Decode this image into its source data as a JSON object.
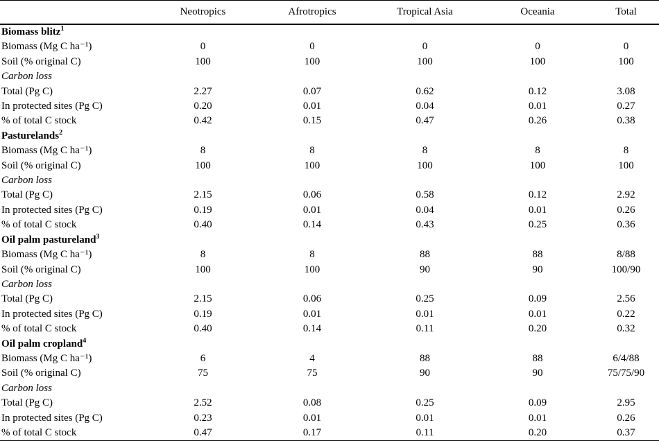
{
  "table": {
    "columns": [
      "Neotropics",
      "Afrotropics",
      "Tropical Asia",
      "Oceania",
      "Total"
    ],
    "sections": [
      {
        "title": "Biomass blitz",
        "footnote_mark": "1",
        "rows": [
          {
            "type": "data",
            "label": "Biomass (Mg C ha⁻¹)",
            "values": [
              "0",
              "0",
              "0",
              "0",
              "0"
            ]
          },
          {
            "type": "data",
            "label": "Soil (% original C)",
            "values": [
              "100",
              "100",
              "100",
              "100",
              "100"
            ]
          },
          {
            "type": "subheader",
            "label": "Carbon loss",
            "values": [
              "",
              "",
              "",
              "",
              ""
            ]
          },
          {
            "type": "data",
            "label": "Total (Pg C)",
            "values": [
              "2.27",
              "0.07",
              "0.62",
              "0.12",
              "3.08"
            ]
          },
          {
            "type": "data",
            "label": "In protected sites (Pg C)",
            "values": [
              "0.20",
              "0.01",
              "0.04",
              "0.01",
              "0.27"
            ]
          },
          {
            "type": "data",
            "label": "% of total C stock",
            "values": [
              "0.42",
              "0.15",
              "0.47",
              "0.26",
              "0.38"
            ]
          }
        ]
      },
      {
        "title": "Pasturelands",
        "footnote_mark": "2",
        "rows": [
          {
            "type": "data",
            "label": "Biomass (Mg C ha⁻¹)",
            "values": [
              "8",
              "8",
              "8",
              "8",
              "8"
            ]
          },
          {
            "type": "data",
            "label": "Soil (% original C)",
            "values": [
              "100",
              "100",
              "100",
              "100",
              "100"
            ]
          },
          {
            "type": "subheader",
            "label": "Carbon loss",
            "values": [
              "",
              "",
              "",
              "",
              ""
            ]
          },
          {
            "type": "data",
            "label": "Total (Pg C)",
            "values": [
              "2.15",
              "0.06",
              "0.58",
              "0.12",
              "2.92"
            ]
          },
          {
            "type": "data",
            "label": "In protected sites (Pg C)",
            "values": [
              "0.19",
              "0.01",
              "0.04",
              "0.01",
              "0.26"
            ]
          },
          {
            "type": "data",
            "label": "% of total C stock",
            "values": [
              "0.40",
              "0.14",
              "0.43",
              "0.25",
              "0.36"
            ]
          }
        ]
      },
      {
        "title": "Oil palm pastureland",
        "footnote_mark": "3",
        "rows": [
          {
            "type": "data",
            "label": "Biomass (Mg C ha⁻¹)",
            "values": [
              "8",
              "8",
              "88",
              "88",
              "8/88"
            ]
          },
          {
            "type": "data",
            "label": "Soil (% original C)",
            "values": [
              "100",
              "100",
              "90",
              "90",
              "100/90"
            ]
          },
          {
            "type": "subheader",
            "label": "Carbon loss",
            "values": [
              "",
              "",
              "",
              "",
              ""
            ]
          },
          {
            "type": "data",
            "label": "Total (Pg C)",
            "values": [
              "2.15",
              "0.06",
              "0.25",
              "0.09",
              "2.56"
            ]
          },
          {
            "type": "data",
            "label": "In protected sites (Pg C)",
            "values": [
              "0.19",
              "0.01",
              "0.01",
              "0.01",
              "0.22"
            ]
          },
          {
            "type": "data",
            "label": "% of total C stock",
            "values": [
              "0.40",
              "0.14",
              "0.11",
              "0.20",
              "0.32"
            ]
          }
        ]
      },
      {
        "title": "Oil palm cropland",
        "footnote_mark": "4",
        "rows": [
          {
            "type": "data",
            "label": "Biomass (Mg C ha⁻¹)",
            "values": [
              "6",
              "4",
              "88",
              "88",
              "6/4/88"
            ]
          },
          {
            "type": "data",
            "label": "Soil (% original C)",
            "values": [
              "75",
              "75",
              "90",
              "90",
              "75/75/90"
            ]
          },
          {
            "type": "subheader",
            "label": "Carbon loss",
            "values": [
              "",
              "",
              "",
              "",
              ""
            ]
          },
          {
            "type": "data",
            "label": "Total (Pg C)",
            "values": [
              "2.52",
              "0.08",
              "0.25",
              "0.09",
              "2.95"
            ]
          },
          {
            "type": "data",
            "label": "In protected sites (Pg C)",
            "values": [
              "0.23",
              "0.01",
              "0.01",
              "0.01",
              "0.26"
            ]
          },
          {
            "type": "data",
            "label": "% of total C stock",
            "values": [
              "0.47",
              "0.17",
              "0.11",
              "0.20",
              "0.37"
            ]
          }
        ]
      }
    ]
  }
}
